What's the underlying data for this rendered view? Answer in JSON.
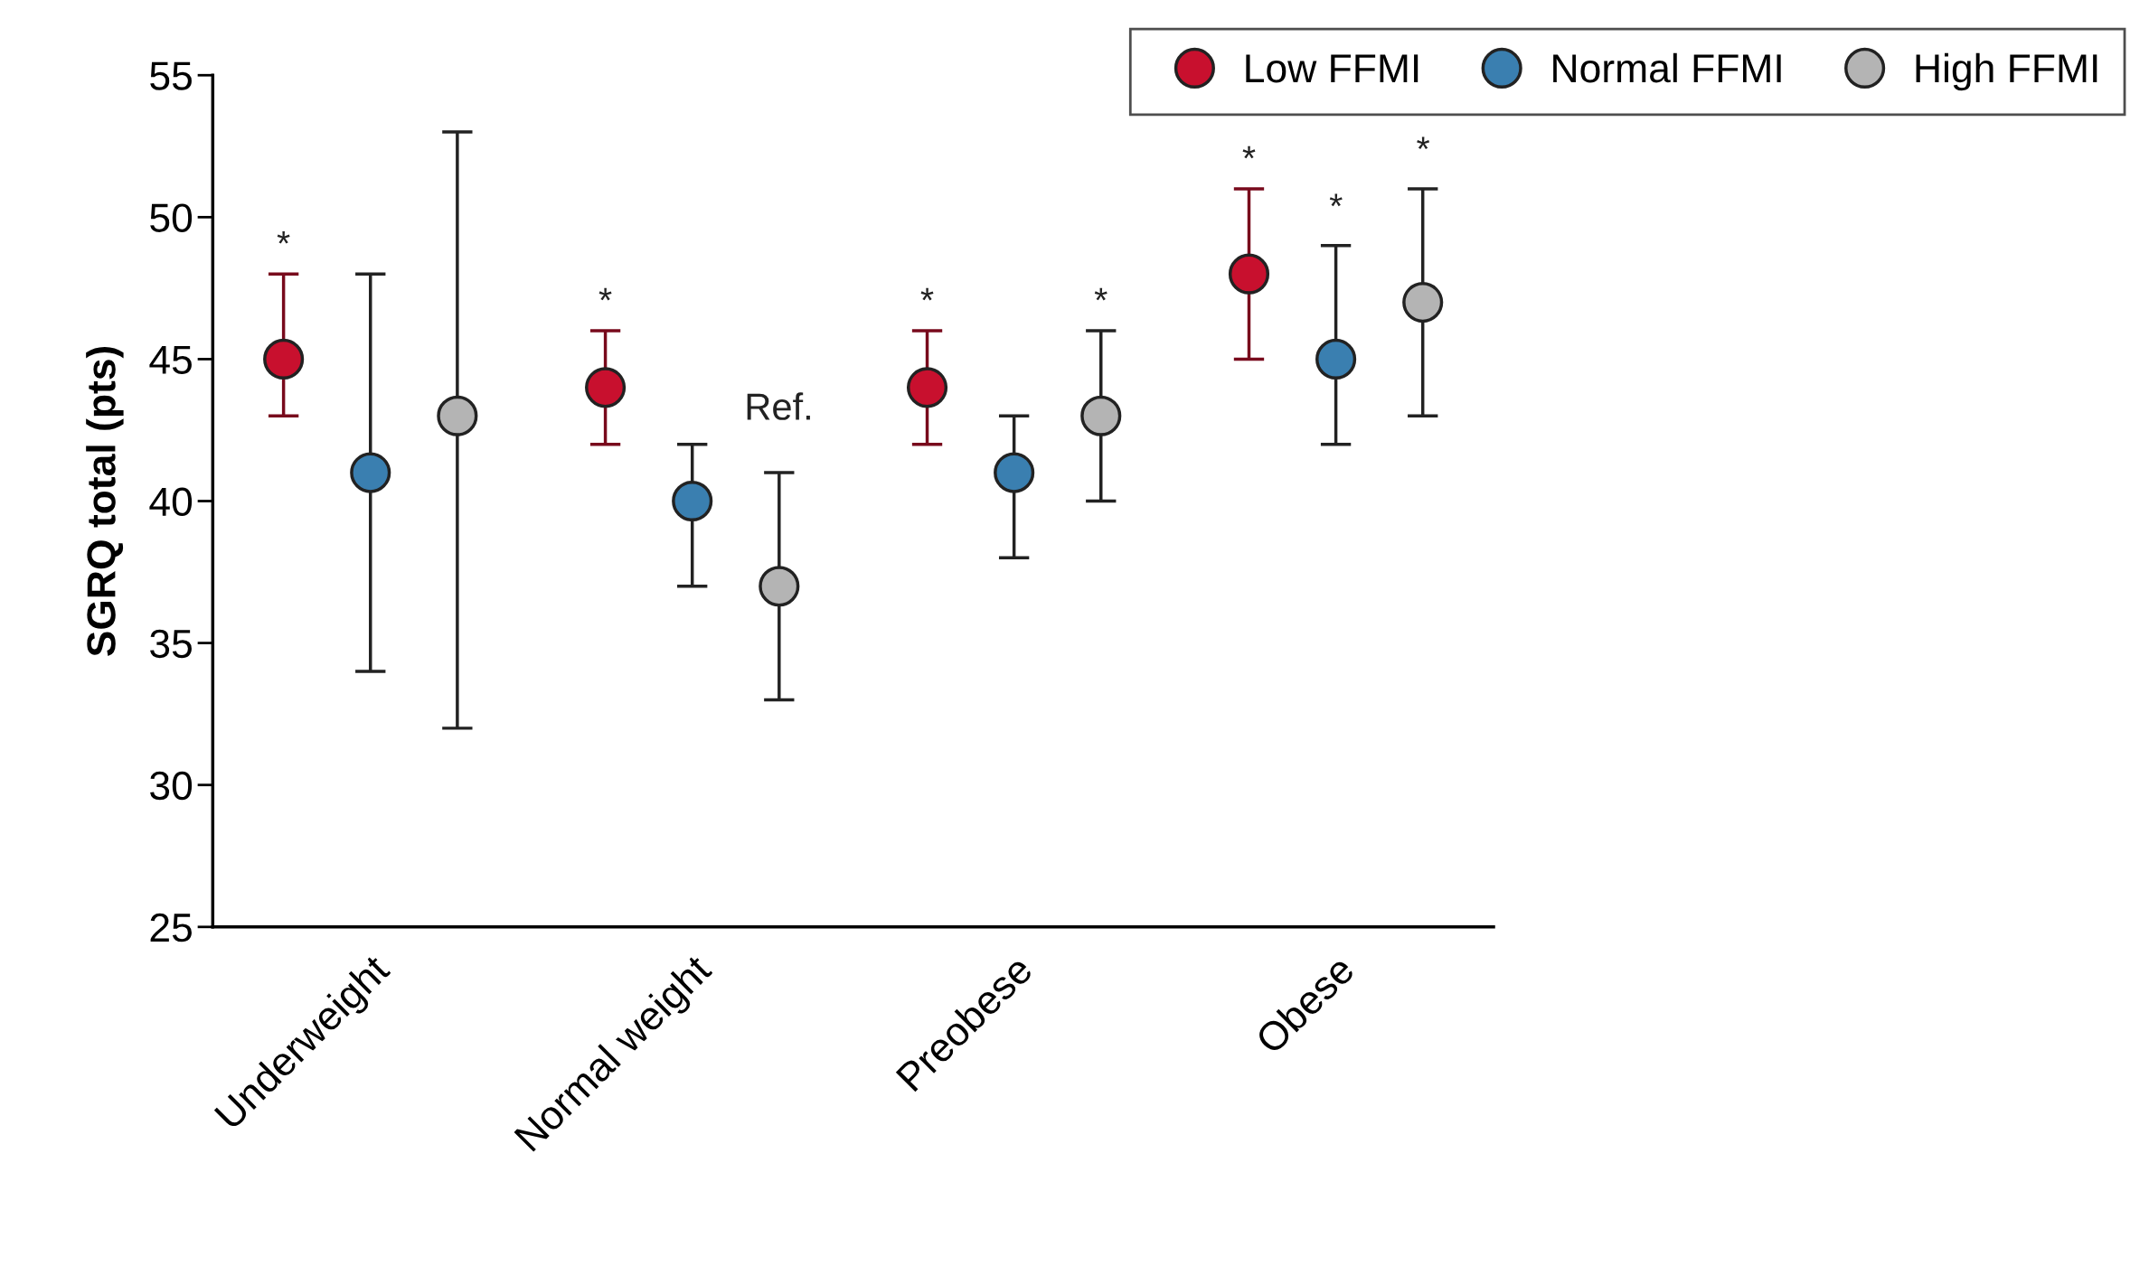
{
  "chart_data": {
    "type": "scatter",
    "ylabel": "SGRQ total (pts)",
    "categories": [
      "Underweight",
      "Normal weight",
      "Preobese",
      "Obese"
    ],
    "ylim": [
      25,
      55
    ],
    "yticks": [
      25,
      30,
      35,
      40,
      45,
      50,
      55
    ],
    "grid": false,
    "legend": "top right",
    "marker": "circle",
    "series": [
      {
        "name": "Low FFMI",
        "color": "#c8102e",
        "values": [
          45,
          44,
          44,
          48
        ],
        "errors": [
          [
            43,
            48
          ],
          [
            42,
            46
          ],
          [
            42,
            46
          ],
          [
            45,
            51
          ]
        ],
        "value_labels": [
          "*",
          "*",
          "*",
          "*"
        ]
      },
      {
        "name": "Normal FFMI",
        "color": "#3a7fb0",
        "values": [
          41,
          40,
          41,
          45
        ],
        "errors": [
          [
            34,
            48
          ],
          [
            37,
            42
          ],
          [
            38,
            43
          ],
          [
            42,
            49
          ]
        ],
        "value_labels": [
          null,
          null,
          null,
          null
        ]
      },
      {
        "name": "High FFMI",
        "color": "#b4b4b4",
        "values": [
          43,
          37,
          43,
          47
        ],
        "errors": [
          [
            32,
            53
          ],
          [
            33,
            41
          ],
          [
            40,
            46
          ],
          [
            43,
            51
          ]
        ],
        "value_labels": [
          null,
          null,
          "*",
          null
        ]
      }
    ],
    "annotations": [
      "Ref.",
      "*",
      "*"
    ]
  }
}
